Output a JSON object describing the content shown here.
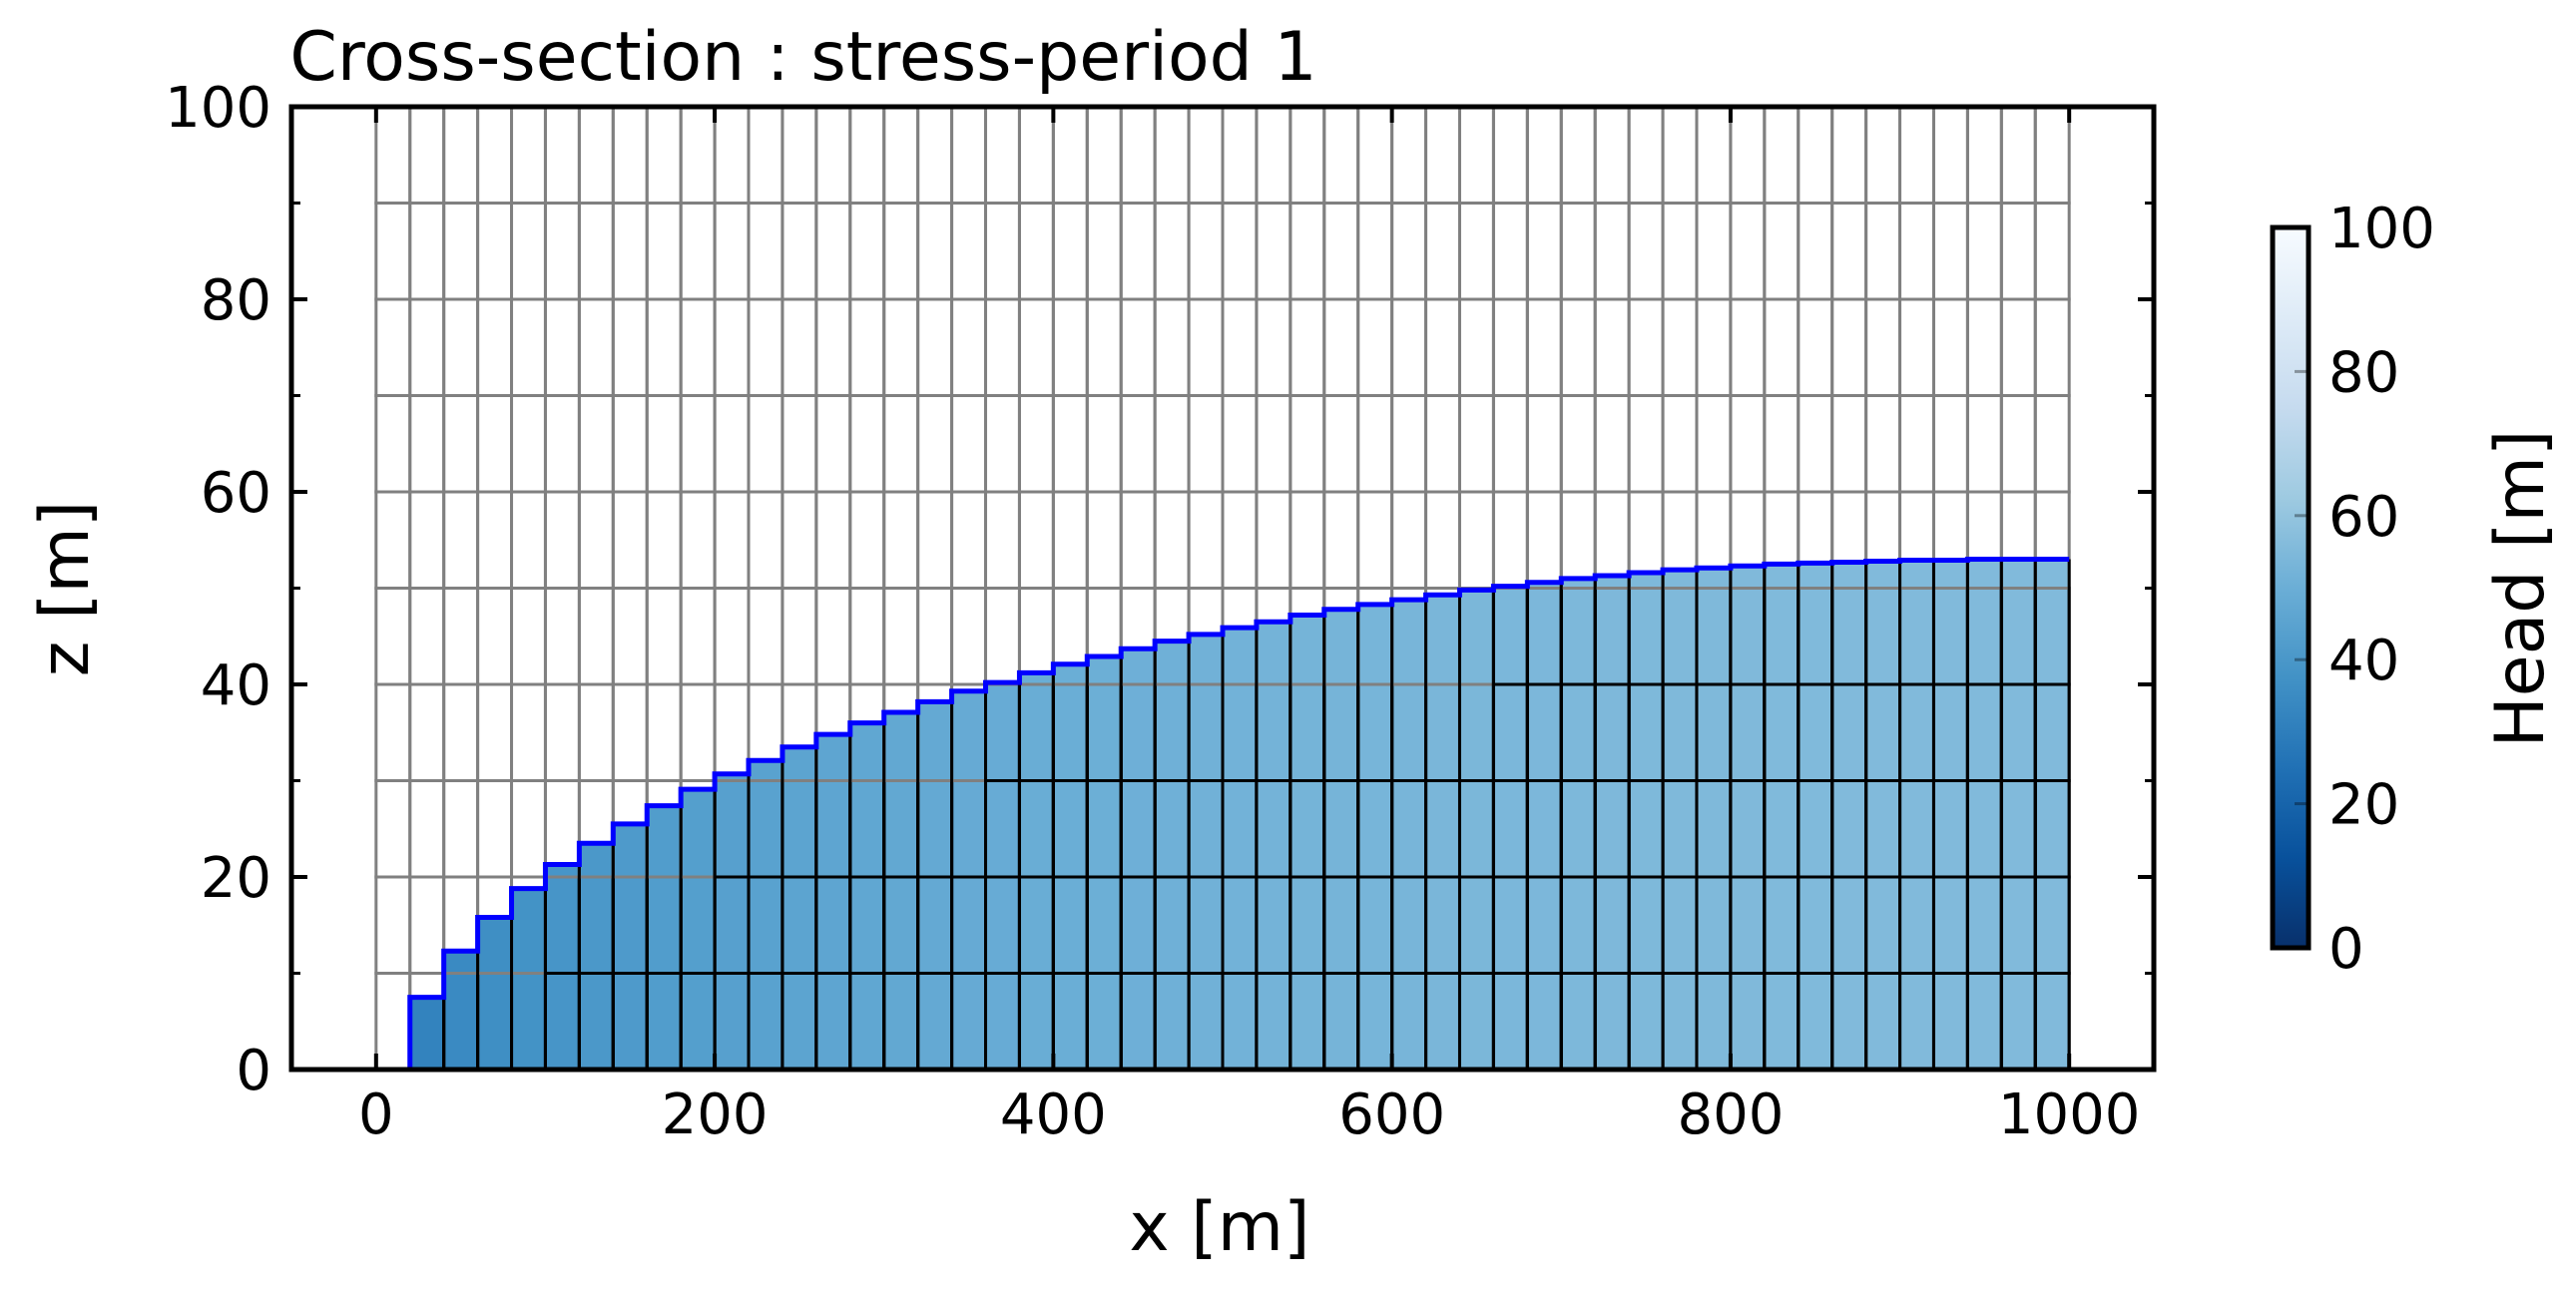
{
  "chart_data": {
    "type": "heatmap",
    "title": "Cross-section : stress-period 1",
    "xlabel": "x [m]",
    "ylabel": "z [m]",
    "xlim": [
      -50,
      1050
    ],
    "ylim": [
      0,
      100
    ],
    "xticks": [
      0,
      200,
      400,
      600,
      800,
      1000
    ],
    "yticks": [
      0,
      20,
      40,
      60,
      80,
      100
    ],
    "grid": {
      "x_edges": [
        0,
        20,
        40,
        60,
        80,
        100,
        120,
        140,
        160,
        180,
        200,
        220,
        240,
        260,
        280,
        300,
        320,
        340,
        360,
        380,
        400,
        420,
        440,
        460,
        480,
        500,
        520,
        540,
        560,
        580,
        600,
        620,
        640,
        660,
        680,
        700,
        720,
        740,
        760,
        780,
        800,
        820,
        840,
        860,
        880,
        900,
        920,
        940,
        960,
        980,
        1000
      ],
      "z_edges": [
        0,
        10,
        20,
        30,
        40,
        50,
        60,
        70,
        80,
        90,
        100
      ]
    },
    "series": [
      {
        "x": [
          10,
          30,
          50,
          70,
          90,
          110,
          130,
          150,
          170,
          190,
          210,
          230,
          250,
          270,
          290,
          310,
          330,
          350,
          370,
          390,
          410,
          430,
          450,
          470,
          490,
          510,
          530,
          550,
          570,
          590,
          610,
          630,
          650,
          670,
          690,
          710,
          730,
          750,
          770,
          790,
          810,
          830,
          850,
          870,
          890,
          910,
          930,
          950,
          970,
          990
        ],
        "values": [
          0,
          7.5,
          12.3,
          15.8,
          18.8,
          21.3,
          23.5,
          25.5,
          27.4,
          29.1,
          30.7,
          32.1,
          33.5,
          34.8,
          36.0,
          37.1,
          38.2,
          39.3,
          40.2,
          41.2,
          42.1,
          42.9,
          43.7,
          44.5,
          45.2,
          45.9,
          46.5,
          47.2,
          47.8,
          48.3,
          48.8,
          49.3,
          49.8,
          50.2,
          50.6,
          51.0,
          51.3,
          51.6,
          51.9,
          52.1,
          52.3,
          52.5,
          52.6,
          52.7,
          52.8,
          52.9,
          52.9,
          53.0,
          53.0,
          53.0
        ]
      }
    ],
    "colorbar": {
      "label": "Head [m]",
      "range": [
        0,
        100
      ],
      "ticks": [
        0,
        20,
        40,
        60,
        80,
        100
      ],
      "cmap": "Blues_r"
    },
    "colors": {
      "water_table_line": "#0000ff",
      "active_grid": "#000000",
      "dry_grid": "#808080"
    }
  }
}
